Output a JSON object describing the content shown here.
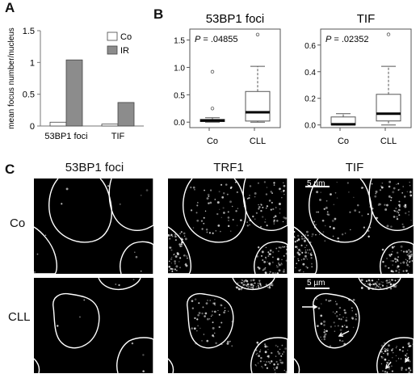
{
  "panels": {
    "a_letter": "A",
    "b_letter": "B",
    "c_letter": "C"
  },
  "chart_data": [
    {
      "type": "bar",
      "panel": "A",
      "categories": [
        "53BP1 foci",
        "TIF"
      ],
      "series": [
        {
          "name": "Co",
          "values": [
            0.06,
            0.03
          ],
          "color": "#ffffff"
        },
        {
          "name": "IR",
          "values": [
            1.04,
            0.37
          ],
          "color": "#8c8c8c"
        }
      ],
      "ylabel": "mean focus number/nucleus",
      "ylim": [
        0,
        1.5
      ],
      "yticks": [
        "0",
        "0.5",
        "1",
        "1.5"
      ],
      "ytick_values": [
        0,
        0.5,
        1,
        1.5
      ],
      "legend_placement": "top-right",
      "grid": false
    },
    {
      "type": "box",
      "panel": "B-left",
      "title": "53BP1 foci",
      "annotation": "P = .04855",
      "categories": [
        "Co",
        "CLL"
      ],
      "ylim": [
        -0.1,
        1.7
      ],
      "yticks": [
        "0.0",
        "0.5",
        "1.0",
        "1.5"
      ],
      "ytick_values": [
        0,
        0.5,
        1.0,
        1.5
      ],
      "boxes": [
        {
          "whisker_low": 0.0,
          "q1": 0.01,
          "median": 0.03,
          "q3": 0.05,
          "whisker_high": 0.08,
          "outliers": [
            0.92,
            0.25
          ]
        },
        {
          "whisker_low": 0.0,
          "q1": 0.02,
          "median": 0.18,
          "q3": 0.56,
          "whisker_high": 1.02,
          "outliers": [
            1.6
          ]
        }
      ]
    },
    {
      "type": "box",
      "panel": "B-right",
      "title": "TIF",
      "annotation": "P = .02352",
      "categories": [
        "Co",
        "CLL"
      ],
      "ylim": [
        -0.02,
        0.72
      ],
      "yticks": [
        "0.0",
        "0.2",
        "0.4",
        "0.6"
      ],
      "ytick_values": [
        0,
        0.2,
        0.4,
        0.6
      ],
      "boxes": [
        {
          "whisker_low": 0.0,
          "q1": 0.0,
          "median": 0.005,
          "q3": 0.06,
          "whisker_high": 0.085,
          "outliers": []
        },
        {
          "whisker_low": 0.0,
          "q1": 0.03,
          "median": 0.085,
          "q3": 0.23,
          "whisker_high": 0.44,
          "outliers": [
            0.68
          ]
        }
      ]
    }
  ],
  "microscopy": {
    "columns": [
      "53BP1 foci",
      "TRF1",
      "TIF"
    ],
    "rows": [
      "Co",
      "CLL"
    ],
    "scalebar_label": "5 µm"
  }
}
